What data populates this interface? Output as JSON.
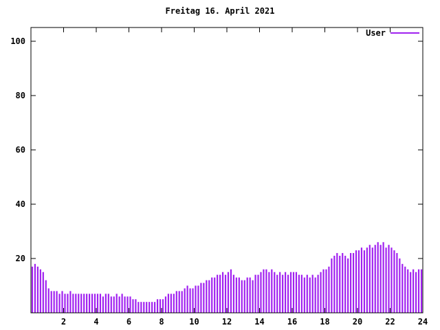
{
  "title": "Freitag 16. April 2021",
  "legend": {
    "label": "User",
    "color": "#a020f0"
  },
  "chart_data": {
    "type": "bar",
    "title": "Freitag 16. April 2021",
    "xlabel": "",
    "ylabel": "",
    "xlim": [
      0,
      24
    ],
    "ylim": [
      0,
      105
    ],
    "x_ticks": [
      2,
      4,
      6,
      8,
      10,
      12,
      14,
      16,
      18,
      20,
      22,
      24
    ],
    "y_ticks": [
      20,
      40,
      60,
      80,
      100
    ],
    "grid": false,
    "legend_position": "top-right",
    "series": [
      {
        "name": "User",
        "color": "#a020f0",
        "x_start_hour": 0,
        "x_step_hours": 0.16666667,
        "values": [
          17,
          18,
          17,
          16,
          15,
          12,
          9,
          8,
          8,
          8,
          7,
          8,
          7,
          7,
          8,
          7,
          7,
          7,
          7,
          7,
          7,
          7,
          7,
          7,
          7,
          7,
          6,
          7,
          7,
          6,
          6,
          7,
          6,
          7,
          6,
          6,
          6,
          5,
          5,
          4,
          4,
          4,
          4,
          4,
          4,
          4,
          5,
          5,
          5,
          6,
          7,
          7,
          7,
          8,
          8,
          8,
          9,
          10,
          9,
          9,
          10,
          10,
          11,
          11,
          12,
          12,
          13,
          13,
          14,
          14,
          15,
          14,
          15,
          16,
          14,
          13,
          13,
          12,
          12,
          13,
          13,
          12,
          14,
          14,
          15,
          16,
          16,
          15,
          16,
          15,
          14,
          15,
          14,
          15,
          14,
          15,
          15,
          15,
          14,
          14,
          13,
          14,
          13,
          14,
          13,
          14,
          15,
          16,
          16,
          17,
          20,
          21,
          22,
          21,
          22,
          21,
          20,
          22,
          22,
          23,
          23,
          24,
          23,
          24,
          25,
          24,
          25,
          26,
          25,
          26,
          24,
          25,
          24,
          23,
          22,
          20,
          18,
          17,
          16,
          15,
          16,
          15,
          16,
          16
        ]
      }
    ]
  }
}
